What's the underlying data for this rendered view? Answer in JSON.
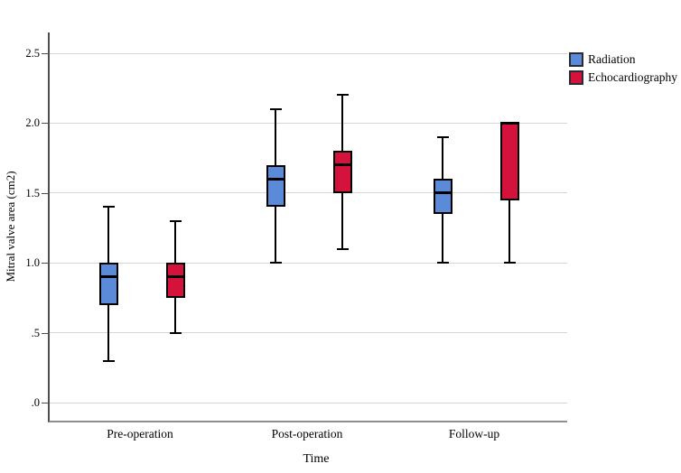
{
  "chart_data": {
    "type": "boxplot",
    "title": "",
    "xlabel": "Time",
    "ylabel": "Mitral valve area (cm2)",
    "categories": [
      "Pre-operation",
      "Post-operation",
      "Follow-up"
    ],
    "y_ticks": [
      {
        "value": 0.0,
        "label": ".0"
      },
      {
        "value": 0.5,
        "label": ".5"
      },
      {
        "value": 1.0,
        "label": "1.0"
      },
      {
        "value": 1.5,
        "label": "1.5"
      },
      {
        "value": 2.0,
        "label": "2.0"
      },
      {
        "value": 2.5,
        "label": "2.5"
      }
    ],
    "ylim": [
      0,
      2.5
    ],
    "grid": true,
    "legend_position": "top-right",
    "colors": {
      "grid": "#d6d6d6",
      "box_outline": "#000000",
      "whisker": "#000000"
    },
    "series": [
      {
        "name": "Radiation",
        "color": "#5b8ad9",
        "boxes": [
          {
            "category": "Pre-operation",
            "min": 0.3,
            "q1": 0.7,
            "median": 0.9,
            "q3": 1.0,
            "max": 1.4
          },
          {
            "category": "Post-operation",
            "min": 1.0,
            "q1": 1.4,
            "median": 1.6,
            "q3": 1.7,
            "max": 2.1
          },
          {
            "category": "Follow-up",
            "min": 1.0,
            "q1": 1.35,
            "median": 1.5,
            "q3": 1.6,
            "max": 1.9
          }
        ]
      },
      {
        "name": "Echocardiography",
        "color": "#d4123b",
        "boxes": [
          {
            "category": "Pre-operation",
            "min": 0.5,
            "q1": 0.75,
            "median": 0.9,
            "q3": 1.0,
            "max": 1.3
          },
          {
            "category": "Post-operation",
            "min": 1.1,
            "q1": 1.5,
            "median": 1.7,
            "q3": 1.8,
            "max": 2.2
          },
          {
            "category": "Follow-up",
            "min": 1.0,
            "q1": 1.45,
            "median": 2.0,
            "q3": 2.0,
            "max": 2.0
          }
        ]
      }
    ]
  }
}
